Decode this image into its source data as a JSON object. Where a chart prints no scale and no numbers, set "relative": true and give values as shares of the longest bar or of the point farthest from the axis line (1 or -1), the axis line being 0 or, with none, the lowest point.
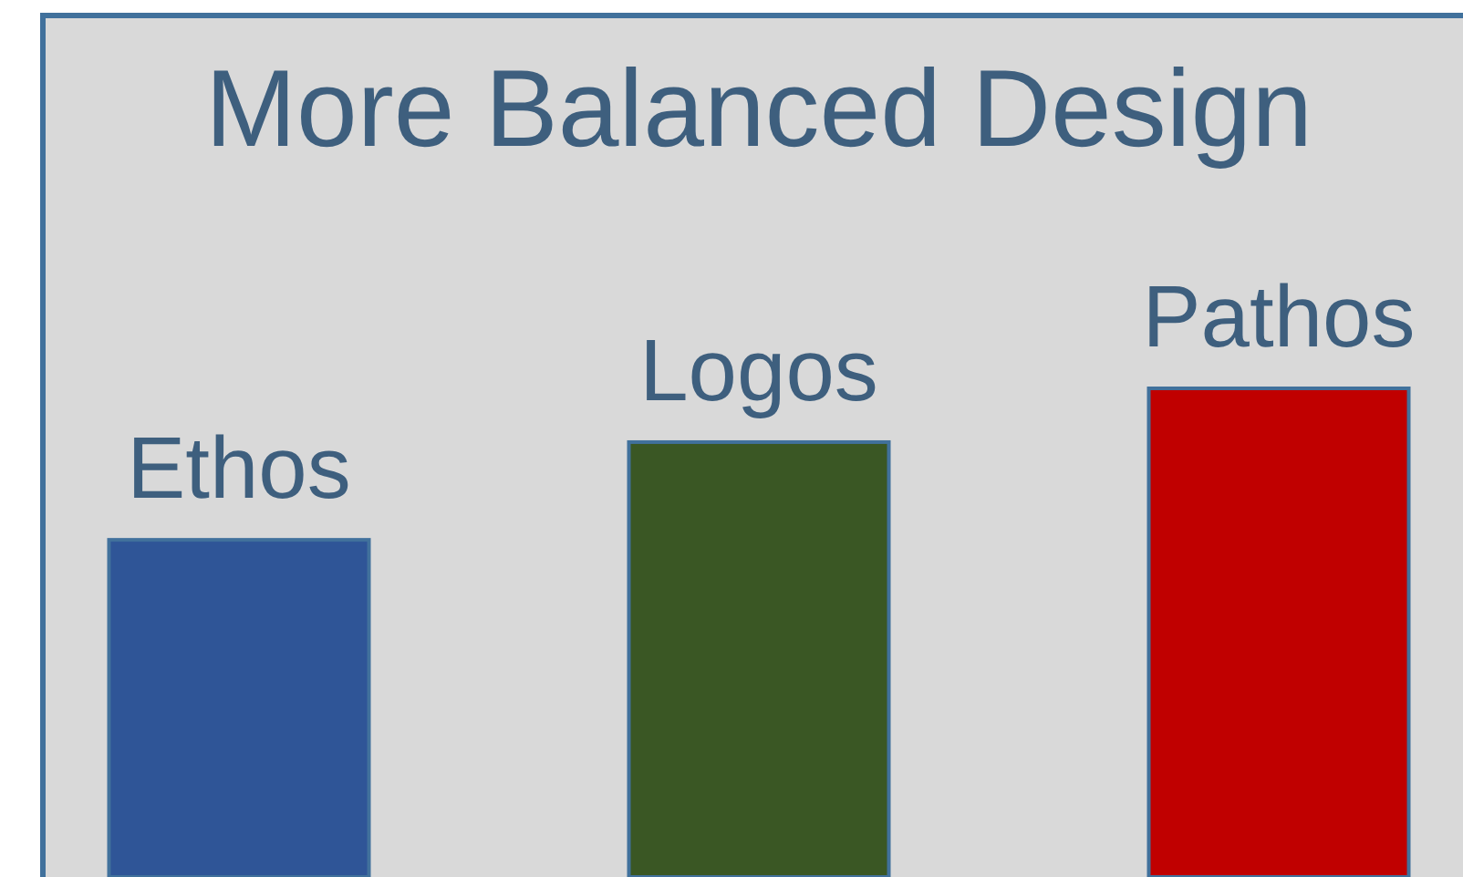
{
  "chart_data": {
    "type": "bar",
    "title": "More Balanced Design",
    "relative": true,
    "categories": [
      "Ethos",
      "Logos",
      "Pathos"
    ],
    "values": [
      0.69,
      0.89,
      1
    ],
    "colors": [
      "#2f5597",
      "#3a5724",
      "#c00000"
    ]
  }
}
